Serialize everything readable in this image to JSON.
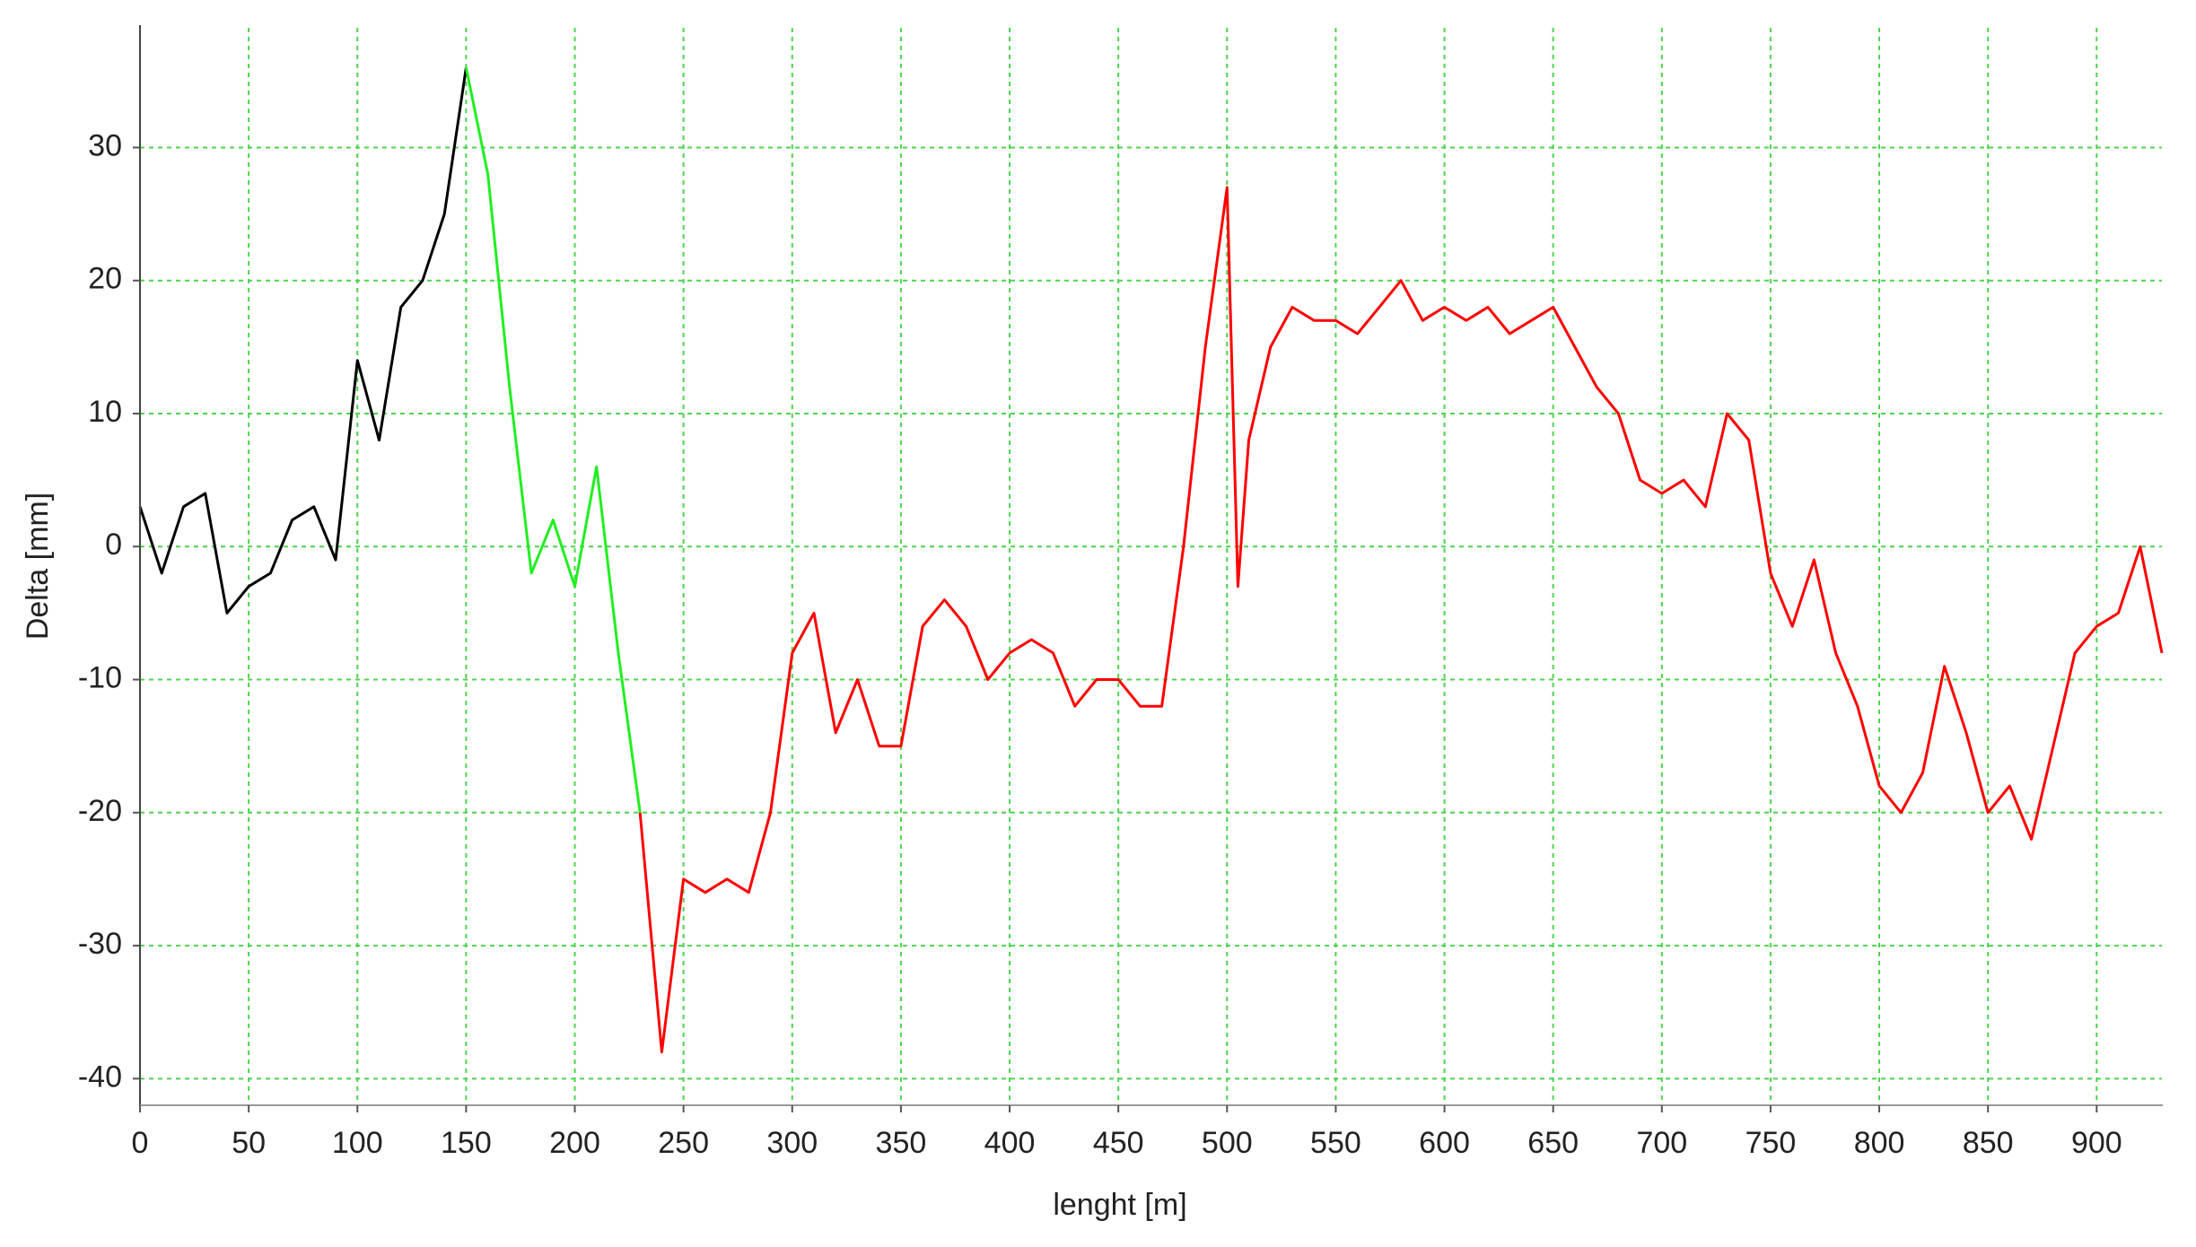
{
  "chart_data": {
    "type": "line",
    "x_label": "lenght  [m]",
    "y_label": "Delta  [mm]",
    "xlim": [
      0,
      930
    ],
    "ylim": [
      -42,
      39
    ],
    "xticks": [
      0,
      50,
      100,
      150,
      200,
      250,
      300,
      350,
      400,
      450,
      500,
      550,
      600,
      650,
      700,
      750,
      800,
      850,
      900
    ],
    "yticks": [
      -40,
      -30,
      -20,
      -10,
      0,
      10,
      20,
      30
    ],
    "grid": true,
    "series": [
      {
        "color": "#000000",
        "x": [
          0,
          10,
          20,
          30,
          40,
          50,
          60,
          70,
          80,
          90,
          100,
          110,
          120,
          130,
          140,
          150
        ],
        "values": [
          3,
          -2,
          3,
          4,
          -5,
          -3,
          -2,
          2,
          3,
          -1,
          14,
          8,
          18,
          20,
          25,
          36
        ]
      },
      {
        "color": "#22ee22",
        "x": [
          150,
          160,
          170,
          180,
          190,
          200,
          210,
          220,
          230
        ],
        "values": [
          36,
          28,
          12,
          -2,
          2,
          -3,
          6,
          -8,
          -20
        ]
      },
      {
        "color": "#ff0000",
        "x": [
          230,
          240,
          250,
          260,
          270,
          280,
          290,
          300,
          310,
          320,
          330,
          340,
          350,
          360,
          370,
          380,
          390,
          400,
          410,
          420,
          430,
          440,
          450,
          460,
          470,
          480,
          490,
          500,
          505,
          510,
          520,
          530,
          540,
          550,
          560,
          570,
          580,
          590,
          600,
          610,
          620,
          630,
          640,
          650,
          660,
          670,
          680,
          690,
          700,
          710,
          720,
          730,
          740,
          750,
          760,
          770,
          780,
          790,
          800,
          810,
          820,
          830,
          840,
          850,
          860,
          870,
          880,
          890,
          900,
          910,
          920,
          930
        ],
        "values": [
          -20,
          -38,
          -25,
          -26,
          -25,
          -26,
          -20,
          -8,
          -5,
          -14,
          -10,
          -15,
          -15,
          -6,
          -4,
          -6,
          -10,
          -8,
          -7,
          -8,
          -12,
          -10,
          -10,
          -12,
          -12,
          0,
          15,
          27,
          -3,
          8,
          15,
          18,
          17,
          17,
          16,
          18,
          20,
          17,
          18,
          17,
          18,
          16,
          17,
          18,
          15,
          12,
          10,
          5,
          4,
          5,
          3,
          10,
          8,
          -2,
          -6,
          -1,
          -8,
          -12,
          -18,
          -20,
          -17,
          -9,
          -14,
          -20,
          -18,
          -22,
          -15,
          -8,
          -6,
          -5,
          0,
          -8
        ]
      }
    ]
  }
}
